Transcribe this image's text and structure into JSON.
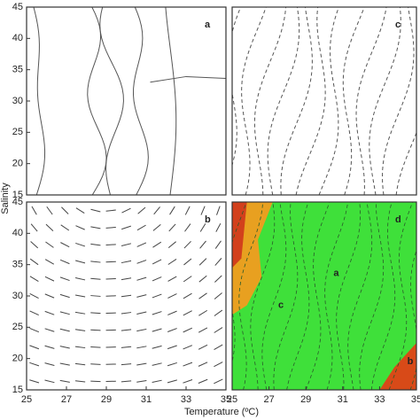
{
  "chart_data": [
    {
      "type": "contour",
      "panel": "a",
      "xlim": [
        25,
        35
      ],
      "ylim": [
        15,
        45
      ],
      "yticks": [
        15,
        20,
        25,
        30,
        35,
        40,
        45
      ],
      "ylabel": "Salinity"
    },
    {
      "type": "contour",
      "panel": "c",
      "xlim": [
        25,
        35
      ],
      "ylim": [
        15,
        45
      ]
    },
    {
      "type": "contour",
      "panel": "b",
      "xlim": [
        25,
        35
      ],
      "ylim": [
        15,
        45
      ],
      "xticks": [
        25,
        27,
        29,
        31,
        33,
        35
      ],
      "yticks": [
        15,
        20,
        25,
        30,
        35,
        40,
        45
      ],
      "xlabel": "Temperature (ºC)"
    },
    {
      "type": "contour",
      "panel": "d",
      "xlim": [
        25,
        35
      ],
      "ylim": [
        15,
        45
      ],
      "xticks": [
        25,
        27,
        29,
        31,
        33,
        35
      ],
      "marks": [
        "a",
        "c",
        "b"
      ]
    }
  ]
}
